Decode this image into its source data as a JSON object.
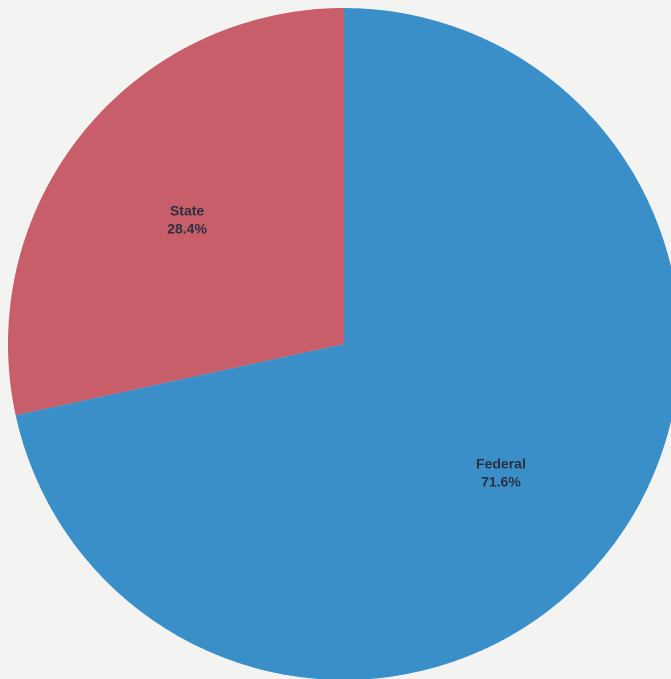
{
  "chart_data": {
    "type": "pie",
    "slices": [
      {
        "label": "Federal",
        "value_label": "71.6%",
        "value": 71.6,
        "color": "#3b8fc9"
      },
      {
        "label": "State",
        "value_label": "28.4%",
        "value": 28.4,
        "color": "#c85e6a"
      }
    ],
    "start": "top",
    "direction": "clockwise"
  }
}
